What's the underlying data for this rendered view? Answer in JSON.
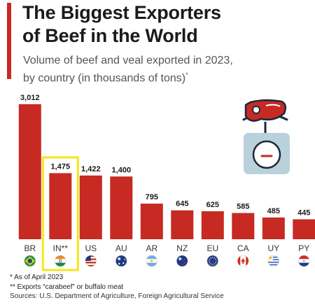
{
  "title_lines": [
    "The Biggest Exporters",
    "of Beef in the World"
  ],
  "subtitle_lines": [
    "Volume of beef and veal exported in 2023,",
    "by country (in thousands of tons)"
  ],
  "subtitle_mark": "*",
  "colors": {
    "bar": "#c62a22",
    "highlight": "#f5e61a",
    "icon_scale": "#b9d1da",
    "icon_dark": "#1b2a3a"
  },
  "icon": "beef-on-scale-icon",
  "chart_data": {
    "type": "bar",
    "categories": [
      "BR",
      "IN**",
      "US",
      "AU",
      "AR",
      "NZ",
      "EU",
      "CA",
      "UY",
      "PY"
    ],
    "values": [
      3012,
      1475,
      1422,
      1400,
      795,
      645,
      625,
      585,
      485,
      445
    ],
    "value_labels": [
      "3,012",
      "1,475",
      "1,422",
      "1,400",
      "795",
      "645",
      "625",
      "585",
      "485",
      "445"
    ],
    "highlighted_category": "IN**",
    "flag_icons": [
      "brazil-flag-icon",
      "india-flag-icon",
      "usa-flag-icon",
      "australia-flag-icon",
      "argentina-flag-icon",
      "new-zealand-flag-icon",
      "eu-flag-icon",
      "canada-flag-icon",
      "uruguay-flag-icon",
      "paraguay-flag-icon"
    ],
    "ylim": [
      0,
      3012
    ]
  },
  "footnotes": [
    "*   As of April 2023",
    "** Exports “carabeef” or buffalo meat"
  ],
  "source": "Sources: U.S. Department of Agriculture, Foreign Agricultural Service"
}
